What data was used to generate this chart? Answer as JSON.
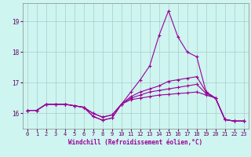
{
  "title": "",
  "xlabel": "Windchill (Refroidissement éolien,°C)",
  "ylabel": "",
  "bg_color": "#cef5f0",
  "grid_color": "#aacccc",
  "line_color": "#990099",
  "spine_color": "#888888",
  "xlim": [
    -0.5,
    23.5
  ],
  "ylim": [
    15.5,
    19.6
  ],
  "yticks": [
    16,
    17,
    18,
    19
  ],
  "xticks": [
    0,
    1,
    2,
    3,
    4,
    5,
    6,
    7,
    8,
    9,
    10,
    11,
    12,
    13,
    14,
    15,
    16,
    17,
    18,
    19,
    20,
    21,
    22,
    23
  ],
  "series": [
    [
      16.1,
      16.1,
      16.3,
      16.3,
      16.3,
      16.25,
      16.2,
      15.9,
      15.78,
      15.85,
      16.3,
      16.7,
      17.1,
      17.55,
      18.55,
      19.35,
      18.5,
      18.0,
      17.85,
      16.7,
      16.5,
      15.8,
      15.75,
      15.75
    ],
    [
      16.1,
      16.1,
      16.3,
      16.3,
      16.3,
      16.25,
      16.2,
      15.9,
      15.78,
      15.85,
      16.3,
      16.55,
      16.7,
      16.8,
      16.9,
      17.05,
      17.1,
      17.15,
      17.2,
      16.7,
      16.5,
      15.8,
      15.75,
      15.75
    ],
    [
      16.1,
      16.1,
      16.3,
      16.3,
      16.3,
      16.25,
      16.2,
      16.0,
      15.88,
      15.95,
      16.3,
      16.5,
      16.6,
      16.7,
      16.75,
      16.8,
      16.85,
      16.9,
      16.95,
      16.65,
      16.5,
      15.8,
      15.75,
      15.75
    ],
    [
      16.1,
      16.1,
      16.3,
      16.3,
      16.3,
      16.25,
      16.2,
      16.0,
      15.88,
      15.95,
      16.3,
      16.45,
      16.5,
      16.55,
      16.6,
      16.62,
      16.65,
      16.67,
      16.7,
      16.6,
      16.5,
      15.8,
      15.75,
      15.75
    ]
  ],
  "marker_size": 2.5,
  "line_width": 0.8,
  "tick_fontsize": 5.0,
  "xlabel_fontsize": 5.5
}
